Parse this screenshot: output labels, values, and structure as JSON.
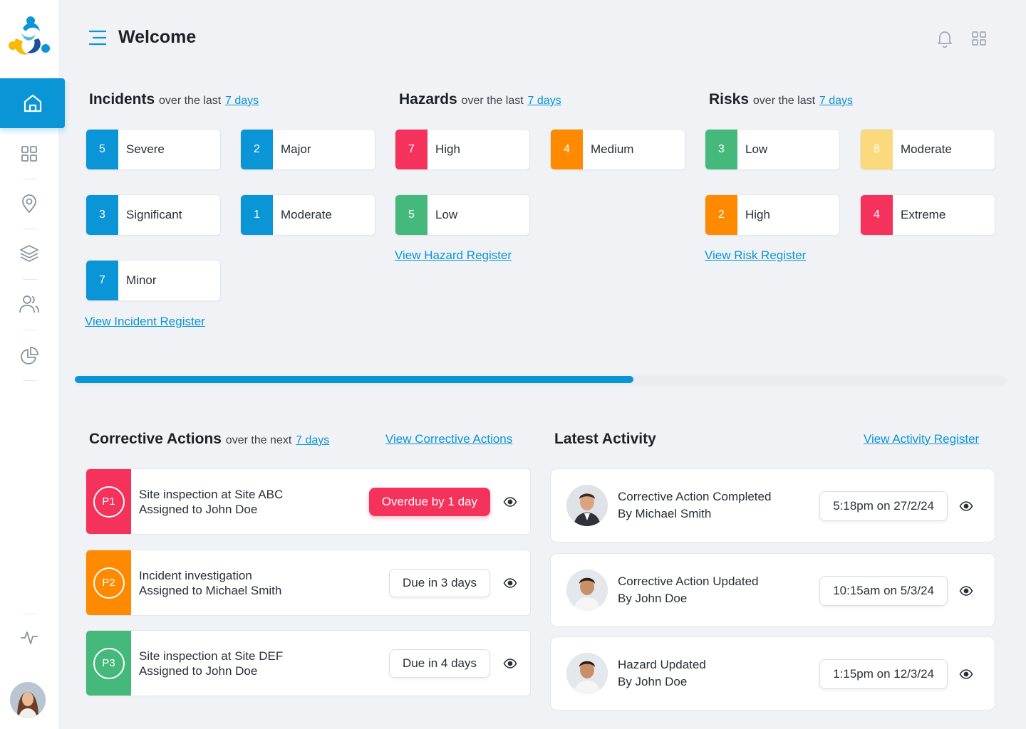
{
  "header": {
    "title": "Welcome"
  },
  "colors": {
    "accent": "#0a95d6",
    "red": "#f5325c",
    "orange": "#ff8a00",
    "green": "#45b97c",
    "yellow": "#fbd97d"
  },
  "sidebar": {
    "items": [
      {
        "name": "home-icon"
      },
      {
        "name": "dashboard-icon"
      },
      {
        "name": "location-icon"
      },
      {
        "name": "layers-icon"
      },
      {
        "name": "users-icon"
      },
      {
        "name": "pie-chart-icon"
      },
      {
        "name": "activity-icon"
      }
    ]
  },
  "incidents": {
    "title": "Incidents",
    "sub": "over the last",
    "range": "7 days",
    "cards": [
      {
        "count": "5",
        "label": "Severe"
      },
      {
        "count": "2",
        "label": "Major"
      },
      {
        "count": "3",
        "label": "Significant"
      },
      {
        "count": "1",
        "label": "Moderate"
      },
      {
        "count": "7",
        "label": "Minor"
      }
    ],
    "link": "View Incident Register"
  },
  "hazards": {
    "title": "Hazards",
    "sub": "over the last",
    "range": "7 days",
    "cards": [
      {
        "count": "7",
        "label": "High"
      },
      {
        "count": "4",
        "label": "Medium"
      },
      {
        "count": "5",
        "label": "Low"
      }
    ],
    "link": "View Hazard Register"
  },
  "risks": {
    "title": "Risks",
    "sub": "over the last",
    "range": "7 days",
    "cards": [
      {
        "count": "3",
        "label": "Low"
      },
      {
        "count": "8",
        "label": "Moderate"
      },
      {
        "count": "2",
        "label": "High"
      },
      {
        "count": "4",
        "label": "Extreme"
      }
    ],
    "link": "View Risk Register"
  },
  "progress": {
    "value": 0.6
  },
  "corrective": {
    "title": "Corrective Actions",
    "sub": "over the next",
    "range": "7 days",
    "link": "View Corrective Actions",
    "items": [
      {
        "priority": "P1",
        "title": "Site inspection at Site ABC",
        "assigned": "Assigned to John Doe",
        "status": "Overdue by 1 day"
      },
      {
        "priority": "P2",
        "title": "Incident investigation",
        "assigned": "Assigned to Michael Smith",
        "status": "Due in 3 days"
      },
      {
        "priority": "P3",
        "title": "Site inspection at Site DEF",
        "assigned": "Assigned to John Doe",
        "status": "Due in 4 days"
      }
    ]
  },
  "activity": {
    "title": "Latest Activity",
    "link": "View Activity Register",
    "items": [
      {
        "title": "Corrective Action Completed",
        "by": "By Michael Smith",
        "time": "5:18pm on 27/2/24"
      },
      {
        "title": "Corrective Action Updated",
        "by": "By John Doe",
        "time": "10:15am on 5/3/24"
      },
      {
        "title": "Hazard Updated",
        "by": "By John Doe",
        "time": "1:15pm on 12/3/24"
      }
    ]
  }
}
